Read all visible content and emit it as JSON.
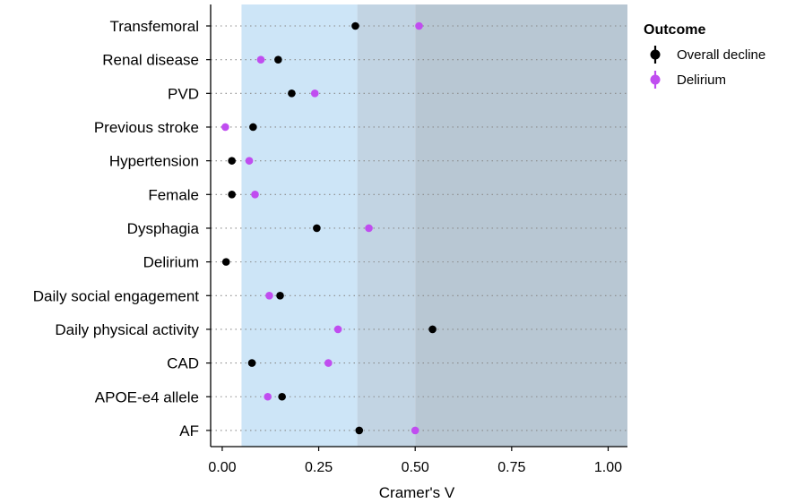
{
  "chart_data": {
    "type": "scatter",
    "categories": [
      "Transfemoral",
      "Renal disease",
      "PVD",
      "Previous stroke",
      "Hypertension",
      "Female",
      "Dysphagia",
      "Delirium",
      "Daily social engagement",
      "Daily physical activity",
      "CAD",
      "APOE-e4 allele",
      "AF"
    ],
    "series": [
      {
        "name": "Overall decline",
        "color": "#000000",
        "values": [
          0.345,
          0.145,
          0.18,
          0.08,
          0.025,
          0.025,
          0.245,
          0.01,
          0.15,
          0.545,
          0.077,
          0.155,
          0.355
        ]
      },
      {
        "name": "Delirium",
        "color": "#C04DF0",
        "values": [
          0.51,
          0.1,
          0.24,
          0.008,
          0.07,
          0.085,
          0.38,
          null,
          0.122,
          0.3,
          0.275,
          0.118,
          0.5
        ]
      }
    ],
    "xlabel": "Cramer's V",
    "ylabel": "",
    "xlim": [
      -0.03,
      1.05
    ],
    "xticks": [
      "0.00",
      "0.25",
      "0.50",
      "0.75",
      "1.00"
    ],
    "xtick_values": [
      0,
      0.25,
      0.5,
      0.75,
      1.0
    ],
    "bands": [
      {
        "from": 0.05,
        "to": 0.35,
        "color": "#CDE5F7"
      },
      {
        "from": 0.35,
        "to": 0.5,
        "color": "#C2D4E3"
      },
      {
        "from": 0.5,
        "to": 1.05,
        "color": "#B8C7D3"
      }
    ],
    "legend": {
      "title": "Outcome",
      "position": "right"
    },
    "grid": {
      "horizontal_dotted": true
    }
  }
}
